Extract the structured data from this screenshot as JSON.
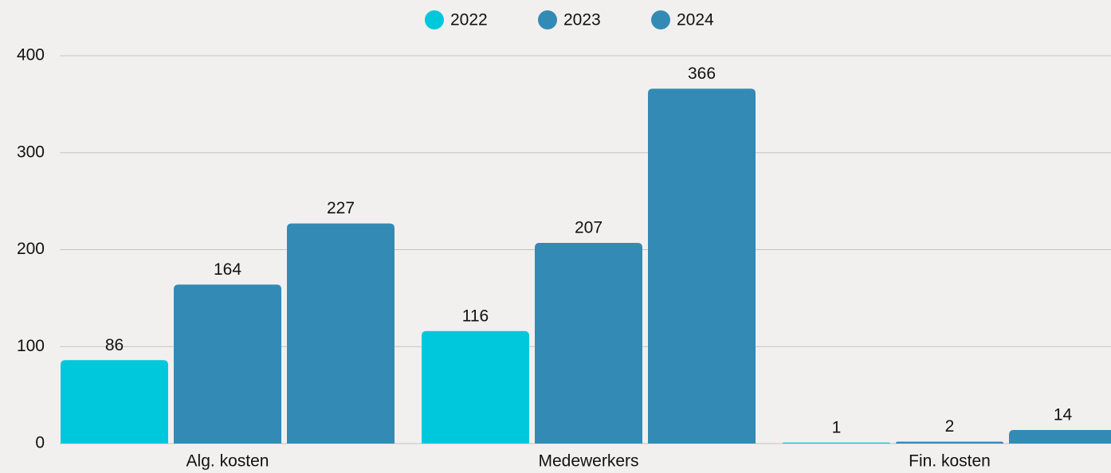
{
  "chart_data": {
    "type": "bar",
    "categories": [
      "Alg. kosten",
      "Medewerkers",
      "Fin. kosten"
    ],
    "series": [
      {
        "name": "2022",
        "color": "#00c8dc",
        "values": [
          86,
          116,
          1
        ]
      },
      {
        "name": "2023",
        "color": "#338bb5",
        "values": [
          164,
          207,
          2
        ]
      },
      {
        "name": "2024",
        "color": "#338bb5",
        "values": [
          227,
          366,
          14
        ]
      }
    ],
    "ylim": [
      0,
      400
    ],
    "yticks": [
      0,
      100,
      200,
      300,
      400
    ],
    "grid": true,
    "legend": "top"
  }
}
